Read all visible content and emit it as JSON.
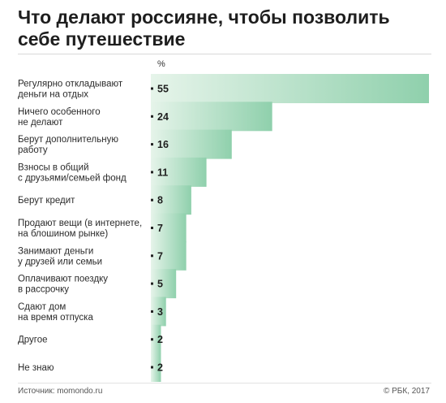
{
  "chart_data": {
    "type": "bar",
    "orientation": "horizontal",
    "title": "Что делают россияне, чтобы позволить себе путешествие",
    "unit_label": "%",
    "categories": [
      "Регулярно откладывают деньги на отдых",
      "Ничего особенного не делают",
      "Берут дополнительную работу",
      "Взносы в общий с друзьями/семьей фонд",
      "Берут кредит",
      "Продают вещи (в интернете, на блошином рынке)",
      "Занимают деньги у друзей или семьи",
      "Оплачивают поездку в рассрочку",
      "Сдают дом на время отпуска",
      "Другое",
      "Не знаю"
    ],
    "label_lines": [
      [
        "Регулярно откладывают",
        "деньги на отдых"
      ],
      [
        "Ничего особенного",
        "не делают"
      ],
      [
        "Берут дополнительную",
        "работу"
      ],
      [
        "Взносы в общий",
        "с друзьями/семьей фонд"
      ],
      [
        "Берут кредит"
      ],
      [
        "Продают вещи (в интернете,",
        "на блошином рынке)"
      ],
      [
        "Занимают деньги",
        "у друзей или семьи"
      ],
      [
        "Оплачивают поездку",
        "в рассрочку"
      ],
      [
        "Сдают дом",
        "на время отпуска"
      ],
      [
        "Другое"
      ],
      [
        "Не знаю"
      ]
    ],
    "values": [
      55,
      24,
      16,
      11,
      8,
      7,
      7,
      5,
      3,
      2,
      2
    ],
    "xlim": [
      0,
      55
    ],
    "grid": false,
    "legend": "none",
    "colors": {
      "bar_start": "#e6f4ea",
      "bar_end": "#8fd0ac",
      "marker": "#222222"
    }
  },
  "footer": {
    "source": "Источник: momondo.ru",
    "copyright": "© РБК, 2017"
  }
}
